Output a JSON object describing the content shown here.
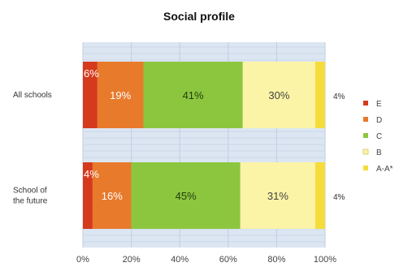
{
  "chart_data": {
    "type": "bar",
    "orientation": "horizontal",
    "stacked": "percent",
    "title": "Social profile",
    "categories": [
      [
        "All schools"
      ],
      [
        "School of",
        "the future"
      ]
    ],
    "series": [
      {
        "name": "E",
        "values": [
          6,
          4
        ],
        "labels": [
          "6%",
          "4%"
        ],
        "color": "#d63a1c",
        "label_color": "#ffffff"
      },
      {
        "name": "D",
        "values": [
          19,
          16
        ],
        "labels": [
          "19%",
          "16%"
        ],
        "color": "#e87a2c",
        "label_color": "#ffffff"
      },
      {
        "name": "C",
        "values": [
          41,
          45
        ],
        "labels": [
          "41%",
          "45%"
        ],
        "color": "#8cc63f",
        "label_color": "#1f3d0c"
      },
      {
        "name": "B",
        "values": [
          30,
          31
        ],
        "labels": [
          "30%",
          "31%"
        ],
        "color": "#fbf3a6",
        "label_color": "#444444"
      },
      {
        "name": "A-A*",
        "values": [
          4,
          4
        ],
        "labels": [
          "4%",
          "4%"
        ],
        "color": "#f5dc3a",
        "label_color": "#333333"
      }
    ],
    "xlim": [
      0,
      100
    ],
    "xticks": [
      "0%",
      "20%",
      "40%",
      "60%",
      "80%",
      "100%"
    ],
    "xlabel": "",
    "ylabel": "",
    "grid": true,
    "legend_position": "right",
    "plot_background": "#dce6f2"
  }
}
